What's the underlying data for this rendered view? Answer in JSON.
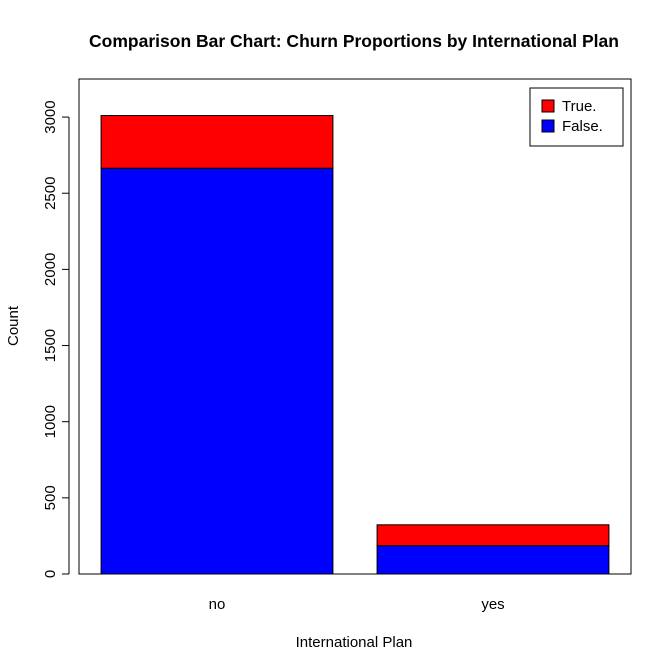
{
  "chart_data": {
    "type": "bar",
    "stacked": true,
    "title": "Comparison Bar Chart: Churn Proportions by International Plan",
    "xlabel": "International Plan",
    "ylabel": "Count",
    "categories": [
      "no",
      "yes"
    ],
    "ylim": [
      0,
      3250
    ],
    "yticks": [
      0,
      500,
      1000,
      1500,
      2000,
      2500,
      3000
    ],
    "grid": false,
    "legend_position": "top-right",
    "series": [
      {
        "name": "False.",
        "color": "#0000ff",
        "values": [
          2664,
          186
        ]
      },
      {
        "name": "True.",
        "color": "#ff0000",
        "values": [
          346,
          137
        ]
      }
    ],
    "legend_order": [
      "True.",
      "False."
    ]
  }
}
